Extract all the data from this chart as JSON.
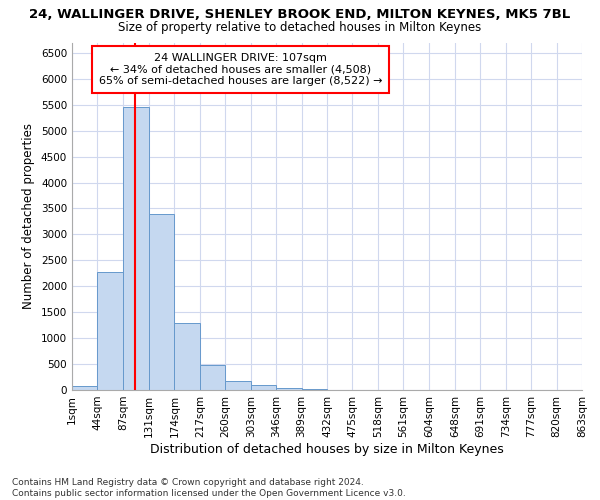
{
  "title": "24, WALLINGER DRIVE, SHENLEY BROOK END, MILTON KEYNES, MK5 7BL",
  "subtitle": "Size of property relative to detached houses in Milton Keynes",
  "xlabel": "Distribution of detached houses by size in Milton Keynes",
  "ylabel": "Number of detached properties",
  "bin_edges": [
    1,
    44,
    87,
    131,
    174,
    217,
    260,
    303,
    346,
    389,
    432,
    475,
    518,
    561,
    604,
    648,
    691,
    734,
    777,
    820,
    863
  ],
  "bar_heights": [
    85,
    2280,
    5450,
    3400,
    1300,
    475,
    175,
    100,
    40,
    10,
    5,
    3,
    0,
    0,
    0,
    0,
    0,
    0,
    0,
    0
  ],
  "bar_color": "#c5d8f0",
  "bar_edge_color": "#6699cc",
  "grid_color": "#d0d8ee",
  "property_size": 107,
  "vline_color": "red",
  "annotation_text": "24 WALLINGER DRIVE: 107sqm\n← 34% of detached houses are smaller (4,508)\n65% of semi-detached houses are larger (8,522) →",
  "annotation_box_color": "white",
  "annotation_box_edge": "red",
  "ylim": [
    0,
    6700
  ],
  "yticks": [
    0,
    500,
    1000,
    1500,
    2000,
    2500,
    3000,
    3500,
    4000,
    4500,
    5000,
    5500,
    6000,
    6500
  ],
  "footer": "Contains HM Land Registry data © Crown copyright and database right 2024.\nContains public sector information licensed under the Open Government Licence v3.0.",
  "title_fontsize": 9.5,
  "subtitle_fontsize": 8.5,
  "xlabel_fontsize": 9,
  "ylabel_fontsize": 8.5,
  "tick_fontsize": 7.5,
  "footer_fontsize": 6.5,
  "annotation_fontsize": 8.0
}
